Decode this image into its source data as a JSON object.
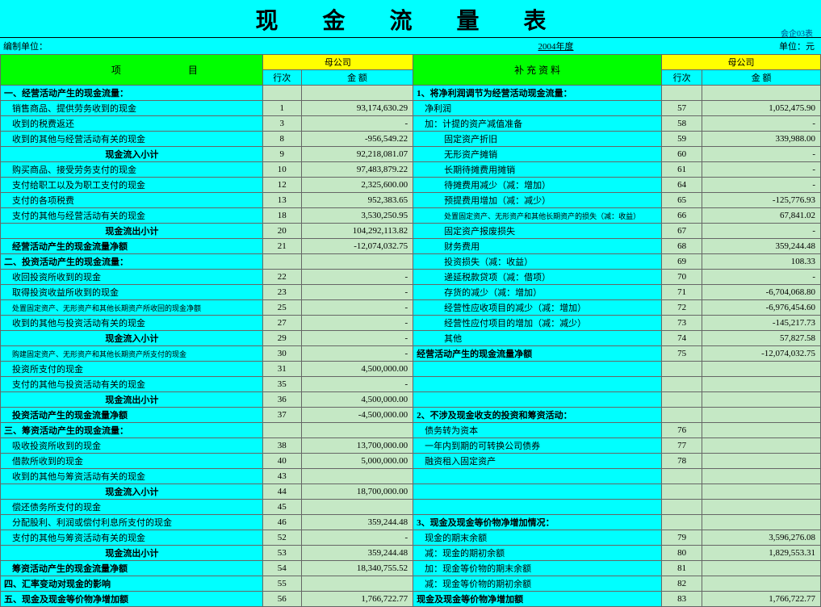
{
  "title": "现 金 流 量 表",
  "form_id": "会企03表",
  "meta": {
    "prep_unit_label": "编制单位：",
    "period": "2004年度",
    "unit_label": "单位：元"
  },
  "headers": {
    "project": "项        目",
    "parent": "母公司",
    "seq": "行次",
    "amount": "金    额",
    "supplement": "补 充 资 料"
  },
  "rows": [
    {
      "i": "一、经营活动产生的现金流量：",
      "ib": 1,
      "s": "",
      "a": "",
      "p": "1、将净利润调节为经营活动现金流量：",
      "pb": 1,
      "s2": "",
      "a2": ""
    },
    {
      "i": "销售商品、提供劳务收到的现金",
      "ind": 1,
      "s": "1",
      "a": "93,174,630.29",
      "p": "净利润",
      "pind": 1,
      "s2": "57",
      "a2": "1,052,475.90"
    },
    {
      "i": "收到的税费返还",
      "ind": 1,
      "s": "3",
      "a": "-",
      "p": "加：计提的资产减值准备",
      "pind": 1,
      "s2": "58",
      "a2": "-"
    },
    {
      "i": "收到的其他与经营活动有关的现金",
      "ind": 1,
      "s": "8",
      "a": "-956,549.22",
      "p": "固定资产折旧",
      "pind": 2,
      "s2": "59",
      "a2": "339,988.00"
    },
    {
      "i": "现金流入小计",
      "ic": 1,
      "s": "9",
      "a": "92,218,081.07",
      "p": "无形资产摊销",
      "pind": 2,
      "s2": "60",
      "a2": "-"
    },
    {
      "i": "购买商品、接受劳务支付的现金",
      "ind": 1,
      "s": "10",
      "a": "97,483,879.22",
      "p": "长期待摊费用摊销",
      "pind": 2,
      "s2": "61",
      "a2": "-"
    },
    {
      "i": "支付给职工以及为职工支付的现金",
      "ind": 1,
      "s": "12",
      "a": "2,325,600.00",
      "p": "待摊费用减少（减：增加）",
      "pind": 2,
      "s2": "64",
      "a2": "-"
    },
    {
      "i": "支付的各项税费",
      "ind": 1,
      "s": "13",
      "a": "952,383.65",
      "p": "预提费用增加（减：减少）",
      "pind": 2,
      "s2": "65",
      "a2": "-125,776.93"
    },
    {
      "i": "支付的其他与经营活动有关的现金",
      "ind": 1,
      "s": "18",
      "a": "3,530,250.95",
      "p": "处置固定资产、无形资产和其他长期资产的损失（减：收益）",
      "pind": 2,
      "psm": 1,
      "s2": "66",
      "a2": "67,841.02"
    },
    {
      "i": "现金流出小计",
      "ic": 1,
      "s": "20",
      "a": "104,292,113.82",
      "p": "固定资产报废损失",
      "pind": 2,
      "s2": "67",
      "a2": "-"
    },
    {
      "i": "经营活动产生的现金流量净额",
      "ib": 1,
      "ind": 1,
      "s": "21",
      "a": "-12,074,032.75",
      "p": "财务费用",
      "pind": 2,
      "s2": "68",
      "a2": "359,244.48"
    },
    {
      "i": "二、投资活动产生的现金流量：",
      "ib": 1,
      "s": "",
      "a": "",
      "p": "投资损失（减：收益）",
      "pind": 2,
      "s2": "69",
      "a2": "108.33"
    },
    {
      "i": "收回投资所收到的现金",
      "ind": 1,
      "s": "22",
      "a": "-",
      "p": "递延税款贷项（减：借项）",
      "pind": 2,
      "s2": "70",
      "a2": "-"
    },
    {
      "i": "取得投资收益所收到的现金",
      "ind": 1,
      "s": "23",
      "a": "-",
      "p": "存货的减少（减：增加）",
      "pind": 2,
      "s2": "71",
      "a2": "-6,704,068.80"
    },
    {
      "i": "处置固定资产、无形资产和其他长期资产所收回的现金净额",
      "ind": 1,
      "ism": 1,
      "s": "25",
      "a": "-",
      "p": "经营性应收项目的减少（减：增加）",
      "pind": 2,
      "s2": "72",
      "a2": "-6,976,454.60"
    },
    {
      "i": "收到的其他与投资活动有关的现金",
      "ind": 1,
      "s": "27",
      "a": "-",
      "p": "经营性应付项目的增加（减：减少）",
      "pind": 2,
      "s2": "73",
      "a2": "-145,217.73"
    },
    {
      "i": "现金流入小计",
      "ic": 1,
      "s": "29",
      "a": "-",
      "p": "其他",
      "pind": 2,
      "s2": "74",
      "a2": "57,827.58"
    },
    {
      "i": "购建固定资产、无形资产和其他长期资产所支付的现金",
      "ind": 1,
      "ism": 1,
      "s": "30",
      "a": "-",
      "p": "经营活动产生的现金流量净额",
      "pb": 1,
      "s2": "75",
      "a2": "-12,074,032.75"
    },
    {
      "i": "投资所支付的现金",
      "ind": 1,
      "s": "31",
      "a": "4,500,000.00",
      "p": "",
      "s2": "",
      "a2": ""
    },
    {
      "i": "支付的其他与投资活动有关的现金",
      "ind": 1,
      "s": "35",
      "a": "-",
      "p": "",
      "s2": "",
      "a2": ""
    },
    {
      "i": "现金流出小计",
      "ic": 1,
      "s": "36",
      "a": "4,500,000.00",
      "p": "",
      "s2": "",
      "a2": ""
    },
    {
      "i": "投资活动产生的现金流量净额",
      "ib": 1,
      "ind": 1,
      "s": "37",
      "a": "-4,500,000.00",
      "p": "2、不涉及现金收支的投资和筹资活动：",
      "pb": 1,
      "s2": "",
      "a2": ""
    },
    {
      "i": "三、筹资活动产生的现金流量：",
      "ib": 1,
      "s": "",
      "a": "",
      "p": "债务转为资本",
      "pind": 1,
      "s2": "76",
      "a2": ""
    },
    {
      "i": "吸收投资所收到的现金",
      "ind": 1,
      "s": "38",
      "a": "13,700,000.00",
      "p": "一年内到期的可转换公司债券",
      "pind": 1,
      "s2": "77",
      "a2": ""
    },
    {
      "i": "借款所收到的现金",
      "ind": 1,
      "s": "40",
      "a": "5,000,000.00",
      "p": "融资租入固定资产",
      "pind": 1,
      "s2": "78",
      "a2": ""
    },
    {
      "i": "收到的其他与筹资活动有关的现金",
      "ind": 1,
      "s": "43",
      "a": "",
      "p": "",
      "s2": "",
      "a2": ""
    },
    {
      "i": "现金流入小计",
      "ic": 1,
      "s": "44",
      "a": "18,700,000.00",
      "p": "",
      "s2": "",
      "a2": ""
    },
    {
      "i": "偿还债务所支付的现金",
      "ind": 1,
      "s": "45",
      "a": "",
      "p": "",
      "s2": "",
      "a2": ""
    },
    {
      "i": "分配股利、利润或偿付利息所支付的现金",
      "ind": 1,
      "s": "46",
      "a": "359,244.48",
      "p": "3、现金及现金等价物净增加情况：",
      "pb": 1,
      "s2": "",
      "a2": ""
    },
    {
      "i": "支付的其他与筹资活动有关的现金",
      "ind": 1,
      "s": "52",
      "a": "-",
      "p": "现金的期末余额",
      "pind": 1,
      "s2": "79",
      "a2": "3,596,276.08"
    },
    {
      "i": "现金流出小计",
      "ic": 1,
      "s": "53",
      "a": "359,244.48",
      "p": "减：现金的期初余额",
      "pind": 1,
      "s2": "80",
      "a2": "1,829,553.31"
    },
    {
      "i": "筹资活动产生的现金流量净额",
      "ib": 1,
      "ind": 1,
      "s": "54",
      "a": "18,340,755.52",
      "p": "加：现金等价物的期末余额",
      "pind": 1,
      "s2": "81",
      "a2": ""
    },
    {
      "i": "四、汇率变动对现金的影响",
      "ib": 1,
      "s": "55",
      "a": "",
      "p": "减：现金等价物的期初余额",
      "pind": 1,
      "s2": "82",
      "a2": ""
    },
    {
      "i": "五、现金及现金等价物净增加额",
      "ib": 1,
      "s": "56",
      "a": "1,766,722.77",
      "p": "现金及现金等价物净增加额",
      "pb": 1,
      "s2": "83",
      "a2": "1,766,722.77"
    }
  ]
}
